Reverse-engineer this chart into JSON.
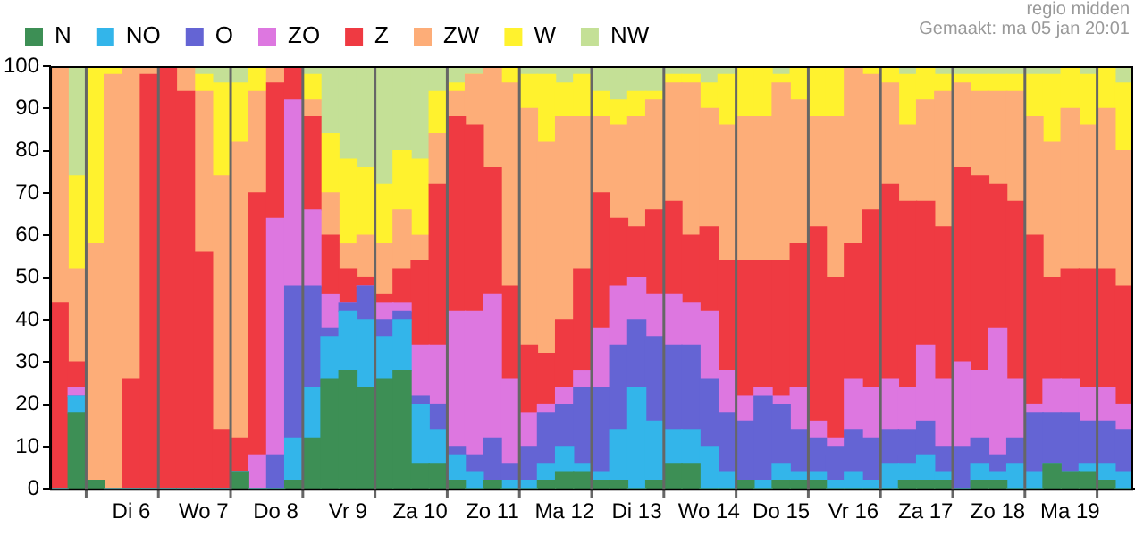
{
  "chart_data": {
    "type": "bar",
    "stacked": true,
    "grid": "x",
    "legend": "top left",
    "annotations": [
      "regio midden",
      "Gemaakt: ma 05 jan 20:01"
    ],
    "ylim": [
      0,
      100
    ],
    "yticks": [
      0,
      10,
      20,
      30,
      40,
      50,
      60,
      70,
      80,
      90,
      100
    ],
    "categories": [
      null,
      null,
      null,
      null,
      "Di 6",
      null,
      null,
      null,
      "Wo 7",
      null,
      null,
      null,
      "Do 8",
      null,
      null,
      null,
      "Vr 9",
      null,
      null,
      null,
      "Za 10",
      null,
      null,
      null,
      "Zo 11",
      null,
      null,
      null,
      "Ma 12",
      null,
      null,
      null,
      "Di 13",
      null,
      null,
      null,
      "Wo 14",
      null,
      null,
      null,
      "Do 15",
      null,
      null,
      null,
      "Vr 16",
      null,
      null,
      null,
      "Za 17",
      null,
      null,
      null,
      "Zo 18",
      null,
      null,
      null,
      "Ma 19",
      null,
      null,
      null
    ],
    "series": [
      {
        "name": "N",
        "color": "#3d8f55",
        "values": [
          0,
          18,
          2,
          0,
          0,
          0,
          0,
          0,
          0,
          0,
          4,
          0,
          0,
          2,
          12,
          26,
          28,
          24,
          26,
          28,
          6,
          6,
          2,
          0,
          2,
          0,
          0,
          2,
          4,
          4,
          2,
          2,
          0,
          2,
          6,
          6,
          0,
          0,
          2,
          0,
          2,
          2,
          2,
          0,
          0,
          0,
          0,
          2,
          2,
          2,
          0,
          2,
          2,
          0,
          0,
          6,
          4,
          4,
          2,
          0
        ]
      },
      {
        "name": "NO",
        "color": "#33b5ea",
        "values": [
          0,
          4,
          0,
          0,
          0,
          0,
          0,
          0,
          0,
          0,
          0,
          0,
          0,
          10,
          12,
          10,
          14,
          16,
          10,
          12,
          14,
          8,
          6,
          4,
          0,
          2,
          2,
          4,
          6,
          2,
          2,
          12,
          24,
          14,
          8,
          8,
          10,
          4,
          0,
          2,
          4,
          2,
          2,
          2,
          4,
          2,
          6,
          4,
          6,
          2,
          0,
          4,
          2,
          6,
          4,
          0,
          0,
          2,
          4,
          4
        ]
      },
      {
        "name": "O",
        "color": "#6464d4",
        "values": [
          0,
          0,
          0,
          0,
          0,
          0,
          0,
          0,
          0,
          0,
          0,
          0,
          8,
          36,
          24,
          2,
          2,
          8,
          4,
          2,
          2,
          6,
          2,
          4,
          10,
          4,
          8,
          12,
          10,
          18,
          20,
          20,
          16,
          20,
          20,
          20,
          16,
          14,
          14,
          20,
          14,
          10,
          8,
          8,
          10,
          10,
          8,
          8,
          8,
          6,
          10,
          6,
          4,
          6,
          14,
          12,
          14,
          10,
          10,
          10
        ]
      },
      {
        "name": "ZO",
        "color": "#dd77e0",
        "values": [
          0,
          2,
          0,
          0,
          0,
          0,
          0,
          0,
          0,
          0,
          0,
          8,
          56,
          44,
          18,
          8,
          0,
          0,
          4,
          2,
          12,
          14,
          32,
          34,
          34,
          20,
          8,
          2,
          4,
          4,
          14,
          14,
          10,
          10,
          12,
          10,
          16,
          10,
          6,
          2,
          2,
          10,
          4,
          2,
          12,
          12,
          12,
          10,
          18,
          16,
          20,
          16,
          30,
          14,
          2,
          8,
          8,
          8,
          8,
          6
        ]
      },
      {
        "name": "Z",
        "color": "#ef3a42",
        "values": [
          44,
          6,
          0,
          0,
          26,
          98,
          100,
          94,
          56,
          14,
          8,
          62,
          32,
          8,
          22,
          14,
          8,
          2,
          2,
          8,
          20,
          38,
          46,
          44,
          30,
          22,
          16,
          12,
          16,
          24,
          32,
          16,
          12,
          20,
          22,
          16,
          20,
          26,
          32,
          30,
          32,
          34,
          46,
          38,
          32,
          42,
          46,
          44,
          34,
          36,
          46,
          46,
          34,
          42,
          40,
          24,
          26,
          28,
          28,
          28
        ]
      },
      {
        "name": "ZW",
        "color": "#fdad78",
        "values": [
          56,
          22,
          56,
          98,
          74,
          2,
          0,
          6,
          38,
          60,
          70,
          24,
          4,
          0,
          4,
          10,
          6,
          10,
          12,
          14,
          6,
          12,
          6,
          12,
          24,
          48,
          56,
          50,
          48,
          36,
          18,
          22,
          26,
          26,
          28,
          36,
          28,
          32,
          34,
          34,
          42,
          34,
          26,
          38,
          42,
          32,
          24,
          18,
          24,
          32,
          20,
          20,
          22,
          26,
          28,
          32,
          38,
          34,
          38,
          32
        ]
      },
      {
        "name": "W",
        "color": "#fff22e",
        "values": [
          0,
          22,
          42,
          2,
          0,
          0,
          0,
          0,
          4,
          22,
          14,
          6,
          0,
          0,
          6,
          14,
          20,
          16,
          14,
          14,
          18,
          10,
          2,
          0,
          0,
          4,
          8,
          16,
          8,
          10,
          6,
          6,
          6,
          2,
          2,
          2,
          6,
          12,
          12,
          12,
          2,
          8,
          12,
          12,
          0,
          2,
          4,
          12,
          8,
          4,
          2,
          4,
          4,
          4,
          10,
          16,
          10,
          12,
          10,
          16
        ]
      },
      {
        "name": "NW",
        "color": "#c4e096",
        "values": [
          0,
          26,
          0,
          0,
          0,
          0,
          0,
          0,
          2,
          4,
          4,
          0,
          0,
          0,
          2,
          16,
          22,
          24,
          28,
          20,
          22,
          6,
          4,
          2,
          0,
          0,
          2,
          2,
          4,
          2,
          6,
          8,
          6,
          6,
          2,
          2,
          4,
          2,
          0,
          0,
          2,
          0,
          0,
          0,
          0,
          0,
          0,
          2,
          0,
          2,
          2,
          2,
          2,
          2,
          2,
          2,
          0,
          2,
          0,
          4
        ]
      }
    ]
  }
}
